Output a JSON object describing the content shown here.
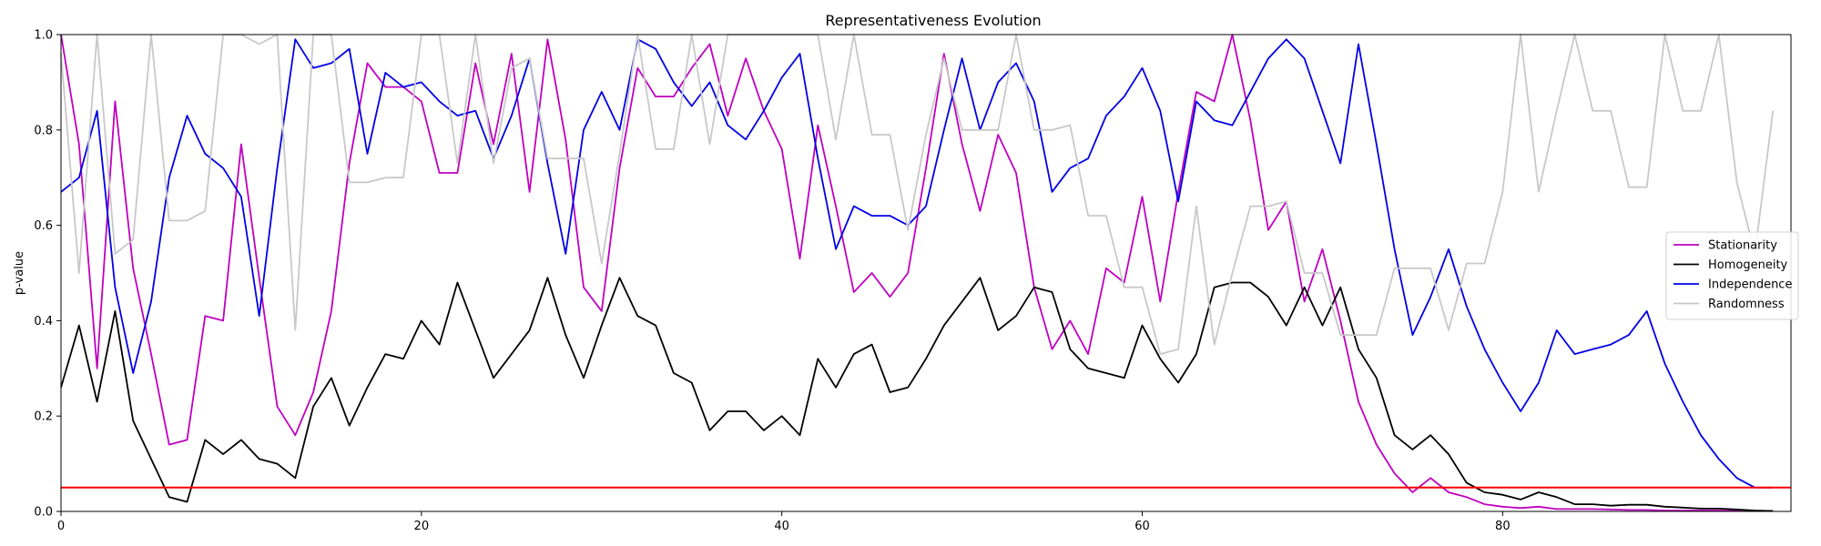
{
  "chart_data": {
    "type": "line",
    "title": "Representativeness Evolution",
    "xlabel": "",
    "ylabel": "p-value",
    "xlim": [
      0,
      96
    ],
    "ylim": [
      0,
      1
    ],
    "xticks": [
      0,
      20,
      40,
      60,
      80
    ],
    "yticks": [
      0.0,
      0.2,
      0.4,
      0.6,
      0.8,
      1.0
    ],
    "xtick_labels": [
      "0",
      "20",
      "40",
      "60",
      "80"
    ],
    "ytick_labels": [
      "0.0",
      "0.2",
      "0.4",
      "0.6",
      "0.8",
      "1.0"
    ],
    "grid": false,
    "legend_position": "center-right",
    "threshold": {
      "value": 0.05,
      "color": "#ff0000"
    },
    "series": [
      {
        "name": "Stationarity",
        "color": "#bf00bf",
        "values": [
          1.0,
          0.77,
          0.3,
          0.86,
          0.51,
          0.33,
          0.14,
          0.15,
          0.41,
          0.4,
          0.77,
          0.49,
          0.22,
          0.16,
          0.25,
          0.42,
          0.73,
          0.94,
          0.89,
          0.89,
          0.86,
          0.71,
          0.71,
          0.94,
          0.77,
          0.96,
          0.67,
          0.99,
          0.78,
          0.47,
          0.42,
          0.72,
          0.93,
          0.87,
          0.87,
          0.93,
          0.98,
          0.83,
          0.95,
          0.84,
          0.76,
          0.53,
          0.81,
          0.64,
          0.46,
          0.5,
          0.45,
          0.5,
          0.72,
          0.96,
          0.77,
          0.63,
          0.79,
          0.71,
          0.47,
          0.34,
          0.4,
          0.33,
          0.51,
          0.48,
          0.66,
          0.44,
          0.67,
          0.88,
          0.86,
          1.0,
          0.82,
          0.59,
          0.65,
          0.44,
          0.55,
          0.4,
          0.23,
          0.14,
          0.08,
          0.04,
          0.07,
          0.04,
          0.03,
          0.015,
          0.01,
          0.007,
          0.01,
          0.005,
          0.005,
          0.005,
          0.004,
          0.003,
          0.003,
          0.002,
          0.002,
          0.002,
          0.002,
          0.001,
          0.001,
          0.001
        ]
      },
      {
        "name": "Homogeneity",
        "color": "#000000",
        "values": [
          0.26,
          0.39,
          0.23,
          0.42,
          0.19,
          0.11,
          0.03,
          0.02,
          0.15,
          0.12,
          0.15,
          0.11,
          0.1,
          0.07,
          0.22,
          0.28,
          0.18,
          0.26,
          0.33,
          0.32,
          0.4,
          0.35,
          0.48,
          0.38,
          0.28,
          0.33,
          0.38,
          0.49,
          0.37,
          0.28,
          0.39,
          0.49,
          0.41,
          0.39,
          0.29,
          0.27,
          0.17,
          0.21,
          0.21,
          0.17,
          0.2,
          0.16,
          0.32,
          0.26,
          0.33,
          0.35,
          0.25,
          0.26,
          0.32,
          0.39,
          0.44,
          0.49,
          0.38,
          0.41,
          0.47,
          0.46,
          0.34,
          0.3,
          0.29,
          0.28,
          0.39,
          0.32,
          0.27,
          0.33,
          0.47,
          0.48,
          0.48,
          0.45,
          0.39,
          0.47,
          0.39,
          0.47,
          0.34,
          0.28,
          0.16,
          0.13,
          0.16,
          0.12,
          0.06,
          0.04,
          0.035,
          0.025,
          0.04,
          0.03,
          0.015,
          0.015,
          0.012,
          0.014,
          0.014,
          0.01,
          0.008,
          0.006,
          0.006,
          0.004,
          0.002,
          0.001
        ]
      },
      {
        "name": "Independence",
        "color": "#0000e6",
        "values": [
          0.67,
          0.7,
          0.84,
          0.47,
          0.29,
          0.44,
          0.7,
          0.83,
          0.75,
          0.72,
          0.66,
          0.41,
          0.72,
          0.99,
          0.93,
          0.94,
          0.97,
          0.75,
          0.92,
          0.89,
          0.9,
          0.86,
          0.83,
          0.84,
          0.74,
          0.83,
          0.95,
          0.73,
          0.54,
          0.8,
          0.88,
          0.8,
          0.99,
          0.97,
          0.9,
          0.85,
          0.9,
          0.81,
          0.78,
          0.84,
          0.91,
          0.96,
          0.74,
          0.55,
          0.64,
          0.62,
          0.62,
          0.6,
          0.64,
          0.8,
          0.95,
          0.8,
          0.9,
          0.94,
          0.86,
          0.67,
          0.72,
          0.74,
          0.83,
          0.87,
          0.93,
          0.84,
          0.65,
          0.86,
          0.82,
          0.81,
          0.88,
          0.95,
          0.99,
          0.95,
          0.84,
          0.73,
          0.98,
          0.77,
          0.55,
          0.37,
          0.45,
          0.55,
          0.43,
          0.34,
          0.27,
          0.21,
          0.27,
          0.38,
          0.33,
          0.34,
          0.35,
          0.37,
          0.42,
          0.31,
          0.23,
          0.16,
          0.11,
          0.07,
          0.05,
          0.05
        ]
      },
      {
        "name": "Randomness",
        "color": "#c8c8c8",
        "values": [
          0.96,
          0.5,
          1.0,
          0.54,
          0.57,
          1.0,
          0.61,
          0.61,
          0.63,
          1.0,
          1.0,
          0.98,
          1.0,
          0.38,
          1.0,
          1.0,
          0.69,
          0.69,
          0.7,
          0.7,
          1.0,
          1.0,
          0.73,
          1.0,
          0.73,
          0.93,
          0.95,
          0.74,
          0.74,
          0.74,
          0.52,
          0.75,
          1.0,
          0.76,
          0.76,
          1.0,
          0.77,
          1.0,
          1.0,
          1.0,
          1.0,
          1.0,
          1.0,
          0.78,
          1.0,
          0.79,
          0.79,
          0.59,
          0.79,
          0.95,
          0.8,
          0.8,
          0.8,
          1.0,
          0.8,
          0.8,
          0.81,
          0.62,
          0.62,
          0.47,
          0.47,
          0.33,
          0.34,
          0.64,
          0.35,
          0.5,
          0.64,
          0.64,
          0.65,
          0.5,
          0.5,
          0.37,
          0.37,
          0.37,
          0.51,
          0.51,
          0.51,
          0.38,
          0.52,
          0.52,
          0.67,
          1.0,
          0.67,
          0.84,
          1.0,
          0.84,
          0.84,
          0.68,
          0.68,
          1.0,
          0.84,
          0.84,
          1.0,
          0.69,
          0.54,
          0.84
        ]
      }
    ]
  }
}
